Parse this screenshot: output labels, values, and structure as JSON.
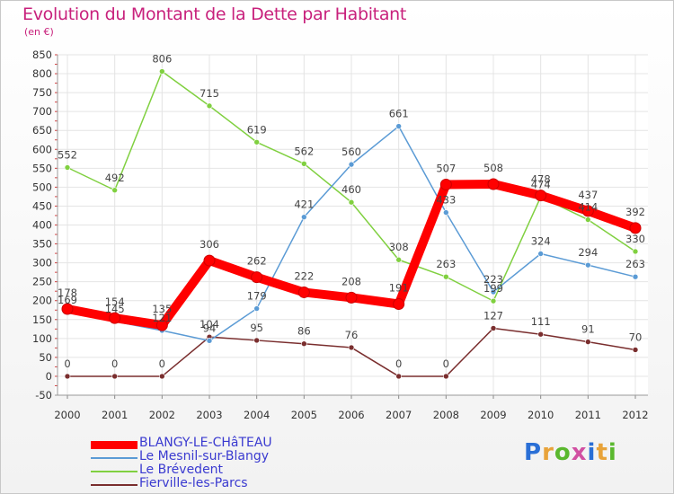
{
  "header": {
    "title": "Evolution du Montant de la Dette par Habitant",
    "unit": "(en €)"
  },
  "logo": {
    "text": "Proxiti",
    "letter_colors": [
      "#2a6fd6",
      "#e8a33a",
      "#5ab82e",
      "#d14fa2",
      "#2a6fd6",
      "#e8a33a",
      "#5ab82e"
    ]
  },
  "chart_data": {
    "type": "line",
    "title": "Evolution du Montant de la Dette par Habitant",
    "ylabel": "(en €)",
    "xlabel": "",
    "x": [
      "2000",
      "2001",
      "2002",
      "2003",
      "2004",
      "2005",
      "2006",
      "2007",
      "2008",
      "2009",
      "2010",
      "2011",
      "2012"
    ],
    "ylim": [
      -50,
      850
    ],
    "yticks": [
      -50,
      0,
      50,
      100,
      150,
      200,
      250,
      300,
      350,
      400,
      450,
      500,
      550,
      600,
      650,
      700,
      750,
      800,
      850
    ],
    "grid": true,
    "legend_position": "bottom-left",
    "series": [
      {
        "name": "BLANGY-LE-CHâTEAU",
        "color": "#ff0000",
        "values": [
          178,
          154,
          135,
          306,
          262,
          222,
          208,
          191,
          507,
          508,
          478,
          437,
          392
        ]
      },
      {
        "name": "Le Mesnil-sur-Blangy",
        "color": "#5b9bd5",
        "values": [
          169,
          145,
          121,
          94,
          179,
          421,
          560,
          661,
          433,
          223,
          324,
          294,
          263
        ]
      },
      {
        "name": "Le Brévedent",
        "color": "#80d040",
        "values": [
          552,
          492,
          806,
          715,
          619,
          562,
          460,
          308,
          263,
          199,
          474,
          414,
          330
        ]
      },
      {
        "name": "Fierville-les-Parcs",
        "color": "#7a2e2e",
        "values": [
          0,
          0,
          0,
          104,
          95,
          86,
          76,
          0,
          0,
          127,
          111,
          91,
          70
        ]
      }
    ]
  }
}
